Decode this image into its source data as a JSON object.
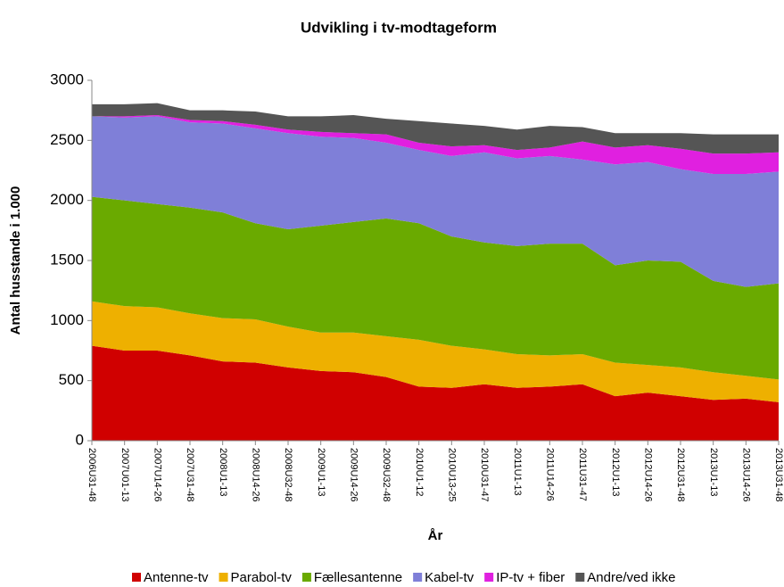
{
  "chart_data": {
    "type": "stacked_area",
    "title": "Udvikling i tv-modtageform",
    "x_label": "År",
    "y_label": "Antal husstande i 1.000",
    "categories": [
      "2006U31-48",
      "2007U01-13",
      "2007U14-26",
      "2007U31-48",
      "2008U1-13",
      "2008U14-26",
      "2008U32-48",
      "2009U1-13",
      "2009U14-26",
      "2009U32-48",
      "2010U1-12",
      "2010U13-25",
      "2010U31-47",
      "2011U1-13",
      "2011U14-26",
      "2011U31-47",
      "2012U1-13",
      "2012U14-26",
      "2012U31-48",
      "2013U1-13",
      "2013U14-26",
      "2013U31-48"
    ],
    "series": [
      {
        "name": "Antenne-tv",
        "color": "#d00000",
        "values": [
          790,
          750,
          750,
          710,
          660,
          650,
          610,
          580,
          570,
          530,
          450,
          440,
          470,
          440,
          450,
          470,
          370,
          400,
          370,
          340,
          350,
          320
        ]
      },
      {
        "name": "Parabol-tv",
        "color": "#eeb000",
        "values": [
          370,
          370,
          360,
          350,
          360,
          360,
          340,
          320,
          330,
          340,
          390,
          350,
          290,
          280,
          260,
          250,
          280,
          230,
          240,
          230,
          190,
          190
        ]
      },
      {
        "name": "Fællesantenne",
        "color": "#6aaa00",
        "values": [
          870,
          880,
          860,
          880,
          880,
          800,
          810,
          890,
          920,
          980,
          970,
          910,
          890,
          900,
          930,
          920,
          810,
          870,
          880,
          760,
          740,
          800
        ]
      },
      {
        "name": "Kabel-tv",
        "color": "#7f7fd8",
        "values": [
          670,
          690,
          730,
          710,
          740,
          790,
          800,
          740,
          700,
          630,
          610,
          670,
          750,
          730,
          730,
          700,
          840,
          820,
          770,
          890,
          940,
          930
        ]
      },
      {
        "name": "IP-tv + fiber",
        "color": "#e020e0",
        "values": [
          0,
          10,
          10,
          20,
          20,
          30,
          30,
          40,
          40,
          70,
          60,
          80,
          60,
          70,
          70,
          150,
          140,
          140,
          170,
          170,
          170,
          160
        ]
      },
      {
        "name": "Andre/ved ikke",
        "color": "#555555",
        "values": [
          100,
          100,
          100,
          80,
          90,
          110,
          110,
          130,
          150,
          130,
          180,
          190,
          160,
          170,
          180,
          120,
          120,
          100,
          130,
          160,
          160,
          150
        ]
      }
    ],
    "ylim": [
      0,
      3000
    ],
    "yticks": [
      0,
      500,
      1000,
      1500,
      2000,
      2500,
      3000
    ],
    "legend": "bottom"
  }
}
